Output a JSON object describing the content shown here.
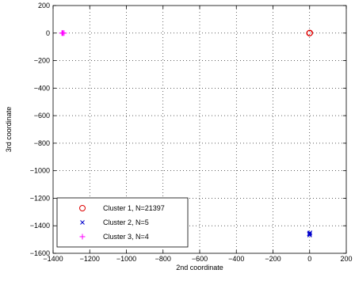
{
  "chart_data": {
    "type": "scatter",
    "xlabel": "2nd coordinate",
    "ylabel": "3rd coordinate",
    "xlim": [
      -1400,
      200
    ],
    "ylim": [
      -1600,
      200
    ],
    "x_ticks": [
      -1400,
      -1200,
      -1000,
      -800,
      -600,
      -400,
      -200,
      0,
      200
    ],
    "y_ticks": [
      -1600,
      -1400,
      -1200,
      -1000,
      -800,
      -600,
      -400,
      -200,
      0,
      200
    ],
    "x_tick_labels": [
      "−1400",
      "−1200",
      "−1000",
      "−800",
      "−600",
      "−400",
      "−200",
      "0",
      "200"
    ],
    "y_tick_labels": [
      "−1600",
      "−1400",
      "−1200",
      "−1000",
      "−800",
      "−600",
      "−400",
      "−200",
      "0",
      "200"
    ],
    "grid": true,
    "legend_position": "bottom-left",
    "series": [
      {
        "name": "Cluster 1, N=21397",
        "marker": "circle",
        "color": "#dd0000",
        "points": [
          [
            0,
            0
          ],
          [
            1,
            1
          ],
          [
            -1,
            -1
          ]
        ]
      },
      {
        "name": "Cluster 2, N=5",
        "marker": "x",
        "color": "#0000cc",
        "points": [
          [
            0,
            -1455
          ],
          [
            0,
            -1462
          ],
          [
            0,
            -1468
          ],
          [
            2,
            -1450
          ],
          [
            -2,
            -1458
          ]
        ]
      },
      {
        "name": "Cluster 3, N=4",
        "marker": "plus",
        "color": "#ff00ff",
        "points": [
          [
            -1352,
            0
          ],
          [
            -1346,
            0
          ],
          [
            -1340,
            0
          ],
          [
            -1348,
            0
          ]
        ]
      }
    ]
  }
}
